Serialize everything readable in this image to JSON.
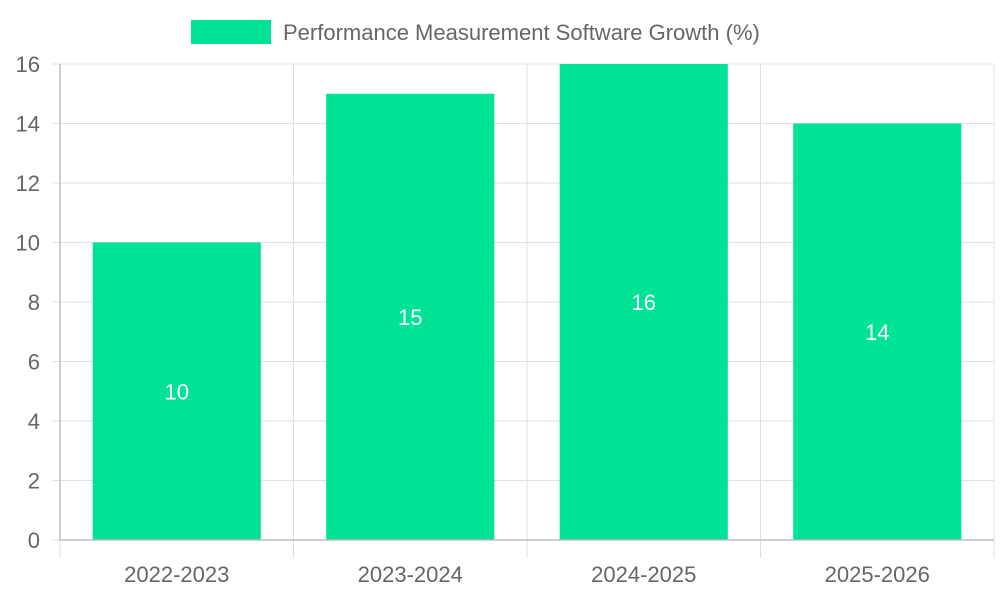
{
  "chart_data": {
    "type": "bar",
    "categories": [
      "2022-2023",
      "2023-2024",
      "2024-2025",
      "2025-2026"
    ],
    "series": [
      {
        "name": "Performance Measurement Software Growth (%)",
        "values": [
          10,
          15,
          16,
          14
        ],
        "color": "#00e394"
      }
    ],
    "ylim": [
      0,
      16
    ],
    "yticks": [
      0,
      2,
      4,
      6,
      8,
      10,
      12,
      14,
      16
    ],
    "grid": true,
    "legend": "top-center",
    "data_labels": true
  }
}
